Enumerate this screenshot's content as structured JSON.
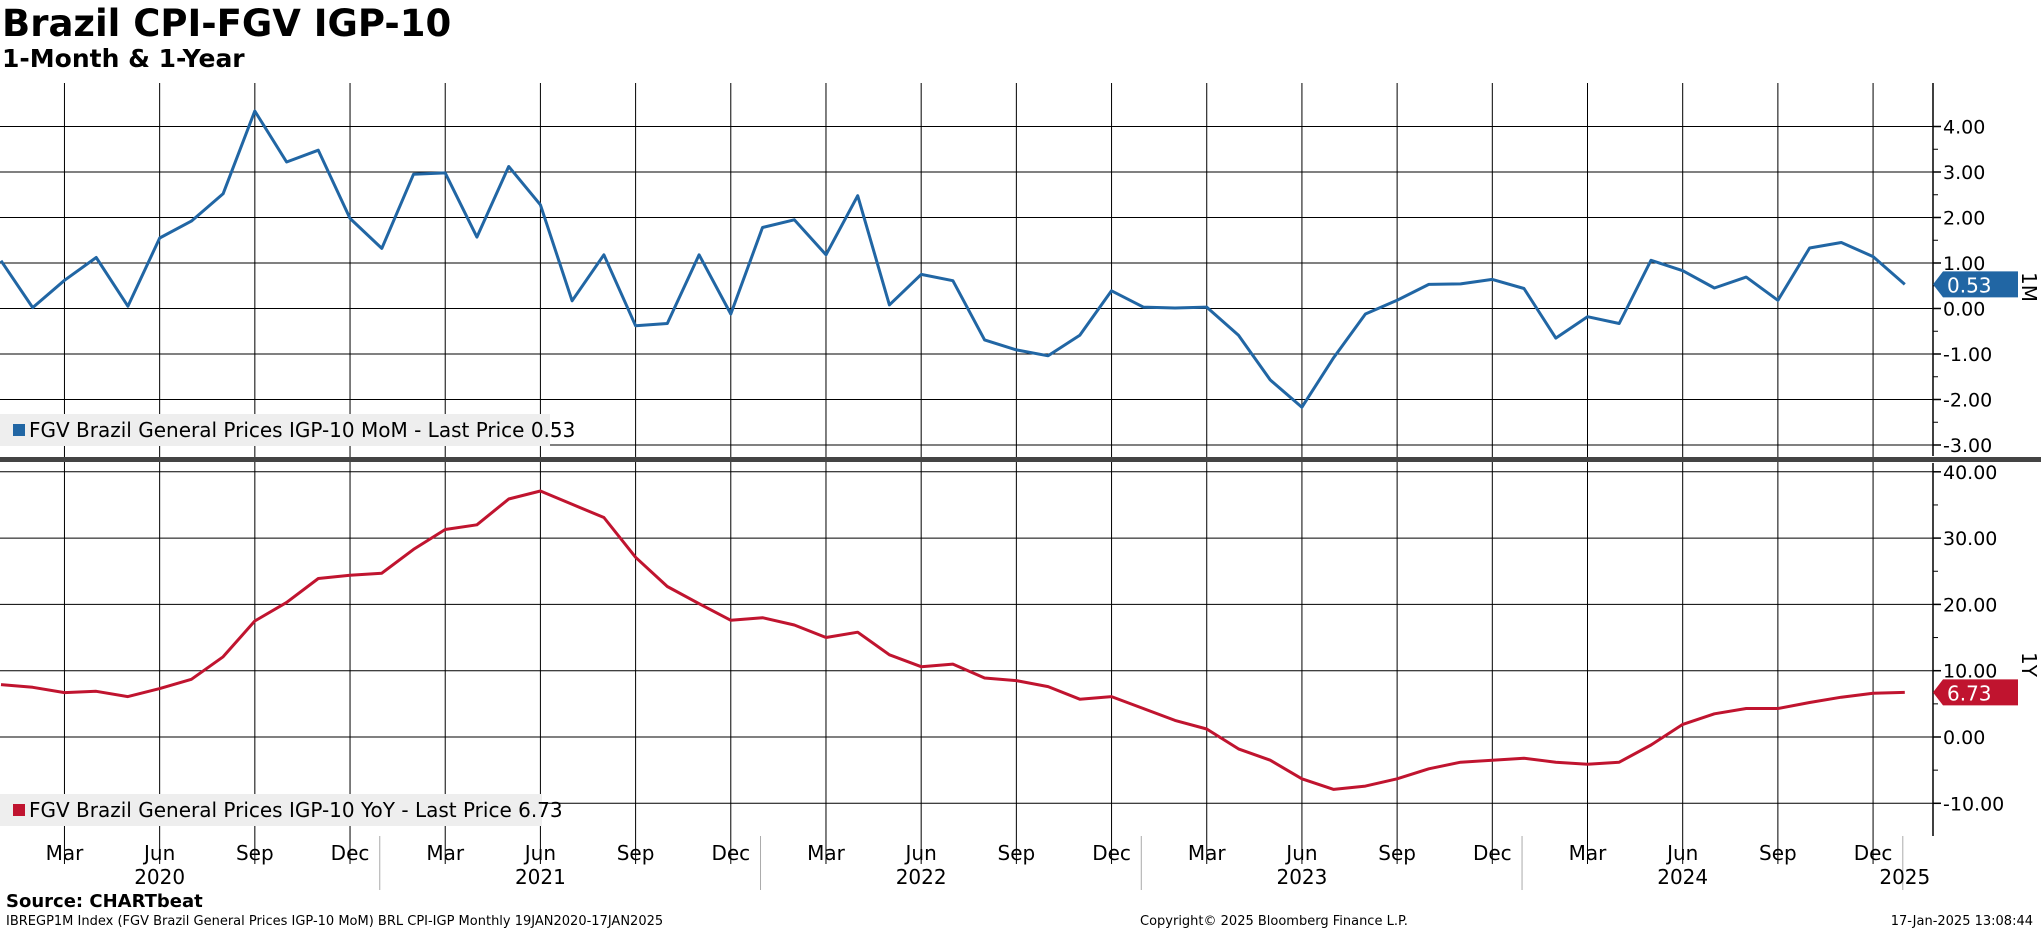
{
  "header": {
    "title": "Brazil CPI-FGV IGP-10",
    "subtitle": "1-Month & 1-Year"
  },
  "footer": {
    "source": "Source: CHARTbeat",
    "description": "IBREGP1M Index (FGV Brazil General Prices IGP-10 MoM) BRL CPI-IGP  Monthly 19JAN2020-17JAN2025",
    "copyright": "Copyright© 2025 Bloomberg Finance L.P.",
    "timestamp": "17-Jan-2025 13:08:44"
  },
  "colors": {
    "mom_series": "#2166a4",
    "yoy_series": "#c0142f",
    "grid": "#000000",
    "legend_background": "#eeeeee"
  },
  "chart_data": [
    {
      "type": "line",
      "panel": "top",
      "axis_side_label": "1M",
      "y_ticks": [
        "4.00",
        "3.00",
        "2.00",
        "1.00",
        "0.00",
        "-1.00",
        "-2.00",
        "-3.00"
      ],
      "ylim": [
        -3.3,
        5.0
      ],
      "last_value_label": "0.53",
      "legend": "FGV Brazil General Prices IGP-10 MoM - Last Price 0.53",
      "series": [
        {
          "name": "FGV Brazil General Prices IGP-10 MoM",
          "x": [
            "2020-01",
            "2020-02",
            "2020-03",
            "2020-04",
            "2020-05",
            "2020-06",
            "2020-07",
            "2020-08",
            "2020-09",
            "2020-10",
            "2020-11",
            "2020-12",
            "2021-01",
            "2021-02",
            "2021-03",
            "2021-04",
            "2021-05",
            "2021-06",
            "2021-07",
            "2021-08",
            "2021-09",
            "2021-10",
            "2021-11",
            "2021-12",
            "2022-01",
            "2022-02",
            "2022-03",
            "2022-04",
            "2022-05",
            "2022-06",
            "2022-07",
            "2022-08",
            "2022-09",
            "2022-10",
            "2022-11",
            "2022-12",
            "2023-01",
            "2023-02",
            "2023-03",
            "2023-04",
            "2023-05",
            "2023-06",
            "2023-07",
            "2023-08",
            "2023-09",
            "2023-10",
            "2023-11",
            "2023-12",
            "2024-01",
            "2024-02",
            "2024-03",
            "2024-04",
            "2024-05",
            "2024-06",
            "2024-07",
            "2024-08",
            "2024-09",
            "2024-10",
            "2024-11",
            "2024-12",
            "2025-01"
          ],
          "values": [
            1.05,
            0.02,
            0.62,
            1.12,
            0.05,
            1.55,
            1.92,
            2.52,
            4.34,
            3.22,
            3.48,
            1.98,
            1.32,
            2.95,
            2.98,
            1.57,
            3.12,
            2.28,
            0.17,
            1.18,
            -0.38,
            -0.33,
            1.18,
            -0.12,
            1.78,
            1.95,
            1.18,
            2.48,
            0.08,
            0.75,
            0.61,
            -0.69,
            -0.91,
            -1.04,
            -0.59,
            0.39,
            0.03,
            0.01,
            0.03,
            -0.59,
            -1.57,
            -2.17,
            -1.08,
            -0.12,
            0.18,
            0.53,
            0.54,
            0.64,
            0.44,
            -0.65,
            -0.18,
            -0.33,
            1.06,
            0.83,
            0.45,
            0.69,
            0.18,
            1.33,
            1.45,
            1.14,
            0.53
          ]
        }
      ]
    },
    {
      "type": "line",
      "panel": "bottom",
      "axis_side_label": "1Y",
      "y_ticks": [
        "40.00",
        "30.00",
        "20.00",
        "10.00",
        "0.00",
        "-10.00"
      ],
      "ylim": [
        -15.2,
        42.2
      ],
      "last_value_label": "6.73",
      "legend": "FGV Brazil General Prices IGP-10 YoY - Last Price 6.73",
      "x_month_ticks": [
        "Mar",
        "Jun",
        "Sep",
        "Dec",
        "Mar",
        "Jun",
        "Sep",
        "Dec",
        "Mar",
        "Jun",
        "Sep",
        "Dec",
        "Mar",
        "Jun",
        "Sep",
        "Dec",
        "Mar",
        "Jun",
        "Sep",
        "Dec"
      ],
      "x_month_tick_dates": [
        "2020-03",
        "2020-06",
        "2020-09",
        "2020-12",
        "2021-03",
        "2021-06",
        "2021-09",
        "2021-12",
        "2022-03",
        "2022-06",
        "2022-09",
        "2022-12",
        "2023-03",
        "2023-06",
        "2023-09",
        "2023-12",
        "2024-03",
        "2024-06",
        "2024-09",
        "2024-12"
      ],
      "x_year_ticks": [
        "2020",
        "2021",
        "2022",
        "2023",
        "2024",
        "2025"
      ],
      "x_year_tick_dates": [
        "2020-06",
        "2021-06",
        "2022-06",
        "2023-06",
        "2024-06",
        "2025-01"
      ],
      "series": [
        {
          "name": "FGV Brazil General Prices IGP-10 YoY",
          "x": [
            "2020-01",
            "2020-02",
            "2020-03",
            "2020-04",
            "2020-05",
            "2020-06",
            "2020-07",
            "2020-08",
            "2020-09",
            "2020-10",
            "2020-11",
            "2020-12",
            "2021-01",
            "2021-02",
            "2021-03",
            "2021-04",
            "2021-05",
            "2021-06",
            "2021-07",
            "2021-08",
            "2021-09",
            "2021-10",
            "2021-11",
            "2021-12",
            "2022-01",
            "2022-02",
            "2022-03",
            "2022-04",
            "2022-05",
            "2022-06",
            "2022-07",
            "2022-08",
            "2022-09",
            "2022-10",
            "2022-11",
            "2022-12",
            "2023-01",
            "2023-02",
            "2023-03",
            "2023-04",
            "2023-05",
            "2023-06",
            "2023-07",
            "2023-08",
            "2023-09",
            "2023-10",
            "2023-11",
            "2023-12",
            "2024-01",
            "2024-02",
            "2024-03",
            "2024-04",
            "2024-05",
            "2024-06",
            "2024-07",
            "2024-08",
            "2024-09",
            "2024-10",
            "2024-11",
            "2024-12",
            "2025-01"
          ],
          "values": [
            7.9,
            7.5,
            6.7,
            6.9,
            6.1,
            7.3,
            8.7,
            12.1,
            17.5,
            20.3,
            23.9,
            24.4,
            24.7,
            28.3,
            31.3,
            32.0,
            35.9,
            37.1,
            35.1,
            33.1,
            27.1,
            22.7,
            20.1,
            17.6,
            18.0,
            16.9,
            15.0,
            15.8,
            12.4,
            10.6,
            11.0,
            8.9,
            8.5,
            7.6,
            5.7,
            6.1,
            4.3,
            2.5,
            1.2,
            -1.8,
            -3.5,
            -6.3,
            -7.9,
            -7.4,
            -6.3,
            -4.8,
            -3.8,
            -3.5,
            -3.2,
            -3.8,
            -4.1,
            -3.8,
            -1.2,
            1.9,
            3.5,
            4.3,
            4.3,
            5.2,
            6.0,
            6.6,
            6.73
          ]
        }
      ]
    }
  ]
}
